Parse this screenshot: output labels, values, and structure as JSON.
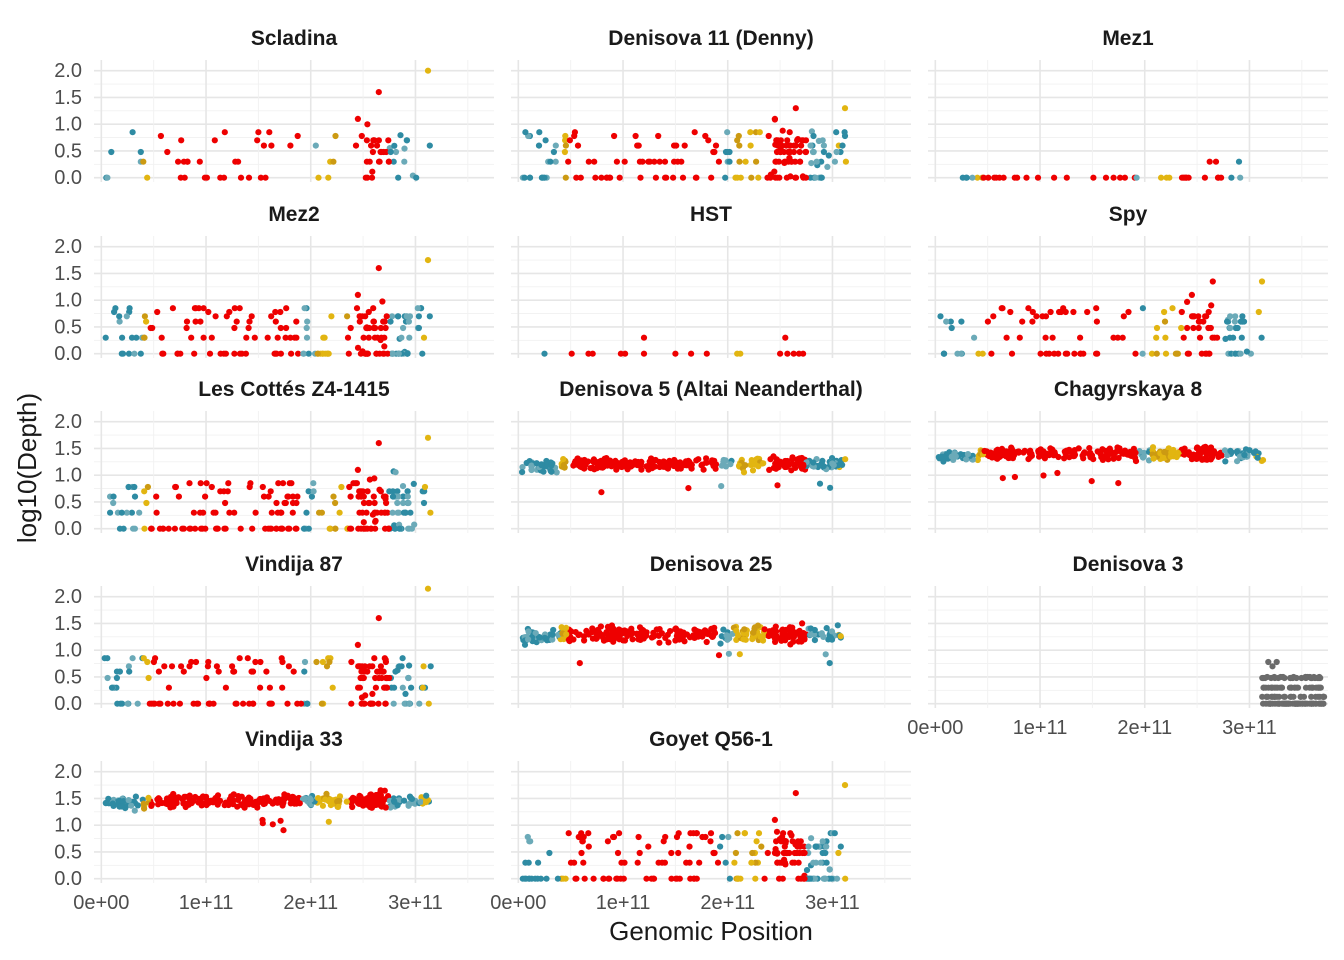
{
  "chart_data": {
    "type": "scatter",
    "layout": "facet_wrap",
    "facet_columns": 3,
    "xlabel": "Genomic Position",
    "ylabel": "log10(Depth)",
    "xlim": [
      -7000000000.0,
      375000000000.0
    ],
    "ylim": [
      -0.08,
      2.2
    ],
    "x_ticks": [
      0,
      100000000000.0,
      200000000000.0,
      300000000000.0
    ],
    "x_tick_labels": [
      "0e+00",
      "1e+11",
      "2e+11",
      "3e+11"
    ],
    "y_ticks": [
      0,
      0.5,
      1,
      1.5,
      2
    ],
    "y_tick_labels": [
      "0.0",
      "0.5",
      "1.0",
      "1.5",
      "2.0"
    ],
    "grid": true,
    "legend": "none",
    "palette": {
      "teal": "#2E8BA3",
      "light_teal": "#6BAAB8",
      "gold": "#E2B511",
      "dark_gold": "#CC9A12",
      "red": "#EE0000",
      "grey": "#6B6B6B"
    },
    "panels": [
      {
        "name": "Scladina",
        "profile": "sparse",
        "density": 0.55,
        "maxv": 2.0
      },
      {
        "name": "Denisova 11 (Denny)",
        "profile": "sparse",
        "density": 1.3,
        "maxv": 1.3
      },
      {
        "name": "Mez1",
        "profile": "flat",
        "density": 1.0,
        "maxv": 0.3
      },
      {
        "name": "Mez2",
        "profile": "sparse",
        "density": 1.3,
        "maxv": 1.75
      },
      {
        "name": "HST",
        "profile": "flat_short",
        "density": 0.4,
        "maxv": 0.3
      },
      {
        "name": "Spy",
        "profile": "sparse",
        "density": 0.9,
        "maxv": 1.35
      },
      {
        "name": "Les Cottés Z4-1415",
        "profile": "sparse",
        "density": 1.5,
        "maxv": 1.7
      },
      {
        "name": "Denisova 5 (Altai Neanderthal)",
        "profile": "dense",
        "center": 1.2,
        "spread": 0.12,
        "density": 1.0
      },
      {
        "name": "Chagyrskaya 8",
        "profile": "dense",
        "center": 1.4,
        "spread": 0.12,
        "density": 1.0
      },
      {
        "name": "Vindija 87",
        "profile": "sparse",
        "density": 1.2,
        "maxv": 2.15
      },
      {
        "name": "Denisova 25",
        "profile": "dense",
        "center": 1.3,
        "spread": 0.15,
        "density": 1.0
      },
      {
        "name": "Denisova 3",
        "profile": "grey",
        "density": 1.0
      },
      {
        "name": "Vindija 33",
        "profile": "dense",
        "center": 1.45,
        "spread": 0.13,
        "density": 1.0
      },
      {
        "name": "Goyet Q56-1",
        "profile": "sparse",
        "density": 1.5,
        "maxv": 1.75
      }
    ]
  }
}
